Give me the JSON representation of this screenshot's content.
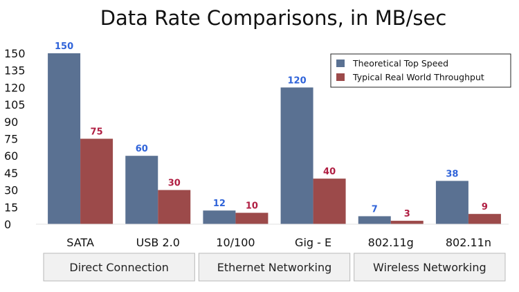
{
  "chart_data": {
    "type": "bar",
    "title": "Data Rate Comparisons, in MB/sec",
    "xlabel": "",
    "ylabel": "",
    "ylim": [
      0,
      150
    ],
    "yticks": [
      0,
      15,
      30,
      45,
      60,
      75,
      90,
      105,
      120,
      135,
      150
    ],
    "grid": false,
    "legend_position": "top-right",
    "categories": [
      "SATA",
      "USB 2.0",
      "10/100",
      "Gig - E",
      "802.11g",
      "802.11n"
    ],
    "series": [
      {
        "name": "Theoretical Top Speed",
        "color": "#5a7192",
        "label_color": "#2f63d9",
        "values": [
          150,
          60,
          12,
          120,
          7,
          38
        ]
      },
      {
        "name": "Typical Real World Throughput",
        "color": "#9c4a4a",
        "label_color": "#b01e42",
        "values": [
          75,
          30,
          10,
          40,
          3,
          9
        ]
      }
    ],
    "groups": [
      {
        "label": "Direct Connection",
        "categories": [
          "SATA",
          "USB 2.0"
        ]
      },
      {
        "label": "Ethernet Networking",
        "categories": [
          "10/100",
          "Gig - E"
        ]
      },
      {
        "label": "Wireless Networking",
        "categories": [
          "802.11g",
          "802.11n"
        ]
      }
    ]
  }
}
